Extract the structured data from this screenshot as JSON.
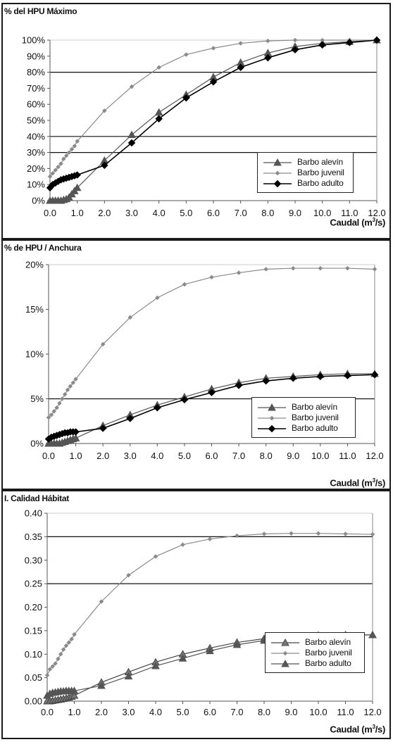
{
  "chart_data": [
    {
      "type": "line",
      "title": "% del HPU Máximo",
      "xlabel": "Caudal (m",
      "xlabel_sup": "3",
      "xlabel_end": "/s)",
      "ylim": [
        0,
        1.0
      ],
      "xlim": [
        0,
        12
      ],
      "x_ticks": [
        "0.0",
        "1.0",
        "2.0",
        "3.0",
        "4.0",
        "5.0",
        "6.0",
        "7.0",
        "8.0",
        "9.0",
        "10.0",
        "11.0",
        "12.0"
      ],
      "y_ticks": [
        "0%",
        "10%",
        "20%",
        "30%",
        "40%",
        "50%",
        "60%",
        "70%",
        "80%",
        "90%",
        "100%"
      ],
      "reference_lines": [
        0.3,
        0.4,
        0.8
      ],
      "legend_position": "bottom-right",
      "series": [
        {
          "name": "Barbo alevín",
          "marker": "triangle",
          "x": [
            0.0,
            0.1,
            0.2,
            0.3,
            0.4,
            0.5,
            0.6,
            0.7,
            0.8,
            0.9,
            1.0,
            2.0,
            3.0,
            4.0,
            5.0,
            6.0,
            7.0,
            8.0,
            9.0,
            10.0,
            11.0,
            12.0
          ],
          "y": [
            0.0,
            0.0,
            0.0,
            0.0,
            0.0,
            0.005,
            0.01,
            0.02,
            0.04,
            0.06,
            0.08,
            0.25,
            0.41,
            0.55,
            0.66,
            0.77,
            0.86,
            0.92,
            0.96,
            0.98,
            0.99,
            1.0
          ]
        },
        {
          "name": "Barbo juvenil",
          "marker": "diamond-small",
          "x": [
            0.0,
            0.1,
            0.2,
            0.3,
            0.4,
            0.5,
            0.6,
            0.7,
            0.8,
            0.9,
            1.0,
            2.0,
            3.0,
            4.0,
            5.0,
            6.0,
            7.0,
            8.0,
            9.0,
            10.0,
            11.0,
            12.0
          ],
          "y": [
            0.15,
            0.17,
            0.19,
            0.21,
            0.23,
            0.26,
            0.28,
            0.3,
            0.32,
            0.34,
            0.37,
            0.56,
            0.71,
            0.83,
            0.91,
            0.95,
            0.98,
            0.995,
            1.0,
            1.0,
            1.0,
            1.0
          ]
        },
        {
          "name": "Barbo adulto",
          "marker": "diamond",
          "x": [
            0.0,
            0.1,
            0.2,
            0.3,
            0.4,
            0.5,
            0.6,
            0.7,
            0.8,
            0.9,
            1.0,
            2.0,
            3.0,
            4.0,
            5.0,
            6.0,
            7.0,
            8.0,
            9.0,
            10.0,
            11.0,
            12.0
          ],
          "y": [
            0.08,
            0.1,
            0.11,
            0.12,
            0.13,
            0.135,
            0.14,
            0.145,
            0.15,
            0.155,
            0.16,
            0.22,
            0.36,
            0.51,
            0.64,
            0.74,
            0.83,
            0.89,
            0.94,
            0.97,
            0.985,
            1.0
          ]
        }
      ]
    },
    {
      "type": "line",
      "title": "% de HPU / Anchura",
      "xlabel": "Caudal (m",
      "xlabel_sup": "3",
      "xlabel_end": "/s)",
      "ylim": [
        0,
        0.2
      ],
      "xlim": [
        0,
        12
      ],
      "x_ticks": [
        "0.0",
        "1.0",
        "2.0",
        "3.0",
        "4.0",
        "5.0",
        "6.0",
        "7.0",
        "8.0",
        "9.0",
        "10.0",
        "11.0",
        "12.0"
      ],
      "y_ticks": [
        "0%",
        "5%",
        "10%",
        "15%",
        "20%"
      ],
      "reference_lines": [
        0.05
      ],
      "legend_position": "bottom-right",
      "series": [
        {
          "name": "Barbo alevín",
          "marker": "triangle",
          "x": [
            0.0,
            0.1,
            0.2,
            0.3,
            0.4,
            0.5,
            0.6,
            0.7,
            0.8,
            0.9,
            1.0,
            2.0,
            3.0,
            4.0,
            5.0,
            6.0,
            7.0,
            8.0,
            9.0,
            10.0,
            11.0,
            12.0
          ],
          "y": [
            0.0,
            0.0,
            0.0,
            0.0,
            0.0,
            0.001,
            0.002,
            0.003,
            0.004,
            0.005,
            0.006,
            0.02,
            0.032,
            0.043,
            0.052,
            0.061,
            0.068,
            0.073,
            0.075,
            0.077,
            0.078,
            0.078
          ]
        },
        {
          "name": "Barbo juvenil",
          "marker": "diamond-small",
          "x": [
            0.0,
            0.1,
            0.2,
            0.3,
            0.4,
            0.5,
            0.6,
            0.7,
            0.8,
            0.9,
            1.0,
            2.0,
            3.0,
            4.0,
            5.0,
            6.0,
            7.0,
            8.0,
            9.0,
            10.0,
            11.0,
            12.0
          ],
          "y": [
            0.029,
            0.032,
            0.036,
            0.04,
            0.045,
            0.05,
            0.055,
            0.06,
            0.064,
            0.068,
            0.072,
            0.111,
            0.141,
            0.163,
            0.178,
            0.186,
            0.191,
            0.195,
            0.196,
            0.196,
            0.196,
            0.195
          ]
        },
        {
          "name": "Barbo adulto",
          "marker": "diamond",
          "x": [
            0.0,
            0.1,
            0.2,
            0.3,
            0.4,
            0.5,
            0.6,
            0.7,
            0.8,
            0.9,
            1.0,
            2.0,
            3.0,
            4.0,
            5.0,
            6.0,
            7.0,
            8.0,
            9.0,
            10.0,
            11.0,
            12.0
          ],
          "y": [
            0.005,
            0.007,
            0.008,
            0.009,
            0.01,
            0.011,
            0.012,
            0.012,
            0.013,
            0.013,
            0.013,
            0.017,
            0.028,
            0.04,
            0.049,
            0.057,
            0.065,
            0.07,
            0.073,
            0.075,
            0.076,
            0.077
          ]
        }
      ]
    },
    {
      "type": "line",
      "title": "I. Calidad Hábitat",
      "xlabel": "Caudal (m",
      "xlabel_sup": "3",
      "xlabel_end": "/s)",
      "ylim": [
        0,
        0.4
      ],
      "xlim": [
        0,
        12
      ],
      "x_ticks": [
        "0.0",
        "1.0",
        "2.0",
        "3.0",
        "4.0",
        "5.0",
        "6.0",
        "7.0",
        "8.0",
        "9.0",
        "10.0",
        "11.0",
        "12.0"
      ],
      "y_ticks": [
        "0.00",
        "0.05",
        "0.10",
        "0.15",
        "0.20",
        "0.25",
        "0.30",
        "0.35",
        "0.40"
      ],
      "reference_lines": [
        0.25,
        0.35
      ],
      "legend_position": "bottom-right",
      "series": [
        {
          "name": "Barbo alevín",
          "marker": "triangle-outline",
          "x": [
            0.0,
            0.1,
            0.2,
            0.3,
            0.4,
            0.5,
            0.6,
            0.7,
            0.8,
            0.9,
            1.0,
            2.0,
            3.0,
            4.0,
            5.0,
            6.0,
            7.0,
            8.0,
            9.0,
            10.0,
            11.0,
            12.0
          ],
          "y": [
            0.0,
            0.0,
            0.001,
            0.002,
            0.003,
            0.004,
            0.005,
            0.006,
            0.008,
            0.01,
            0.012,
            0.04,
            0.062,
            0.083,
            0.1,
            0.113,
            0.125,
            0.133,
            0.137,
            0.14,
            0.141,
            0.141
          ]
        },
        {
          "name": "Barbo juvenil",
          "marker": "diamond-small",
          "x": [
            0.0,
            0.1,
            0.2,
            0.3,
            0.4,
            0.5,
            0.6,
            0.7,
            0.8,
            0.9,
            1.0,
            2.0,
            3.0,
            4.0,
            5.0,
            6.0,
            7.0,
            8.0,
            9.0,
            10.0,
            11.0,
            12.0
          ],
          "y": [
            0.055,
            0.068,
            0.074,
            0.08,
            0.09,
            0.1,
            0.11,
            0.118,
            0.125,
            0.132,
            0.142,
            0.212,
            0.268,
            0.308,
            0.333,
            0.345,
            0.352,
            0.356,
            0.357,
            0.357,
            0.356,
            0.355
          ]
        },
        {
          "name": "Barbo adulto",
          "marker": "triangle",
          "x": [
            0.0,
            0.1,
            0.2,
            0.3,
            0.4,
            0.5,
            0.6,
            0.7,
            0.8,
            0.9,
            1.0,
            2.0,
            3.0,
            4.0,
            5.0,
            6.0,
            7.0,
            8.0,
            9.0,
            10.0,
            11.0,
            12.0
          ],
          "y": [
            0.012,
            0.016,
            0.018,
            0.019,
            0.02,
            0.021,
            0.021,
            0.022,
            0.022,
            0.022,
            0.022,
            0.033,
            0.053,
            0.075,
            0.091,
            0.107,
            0.12,
            0.129,
            0.135,
            0.138,
            0.14,
            0.141
          ]
        }
      ]
    }
  ]
}
